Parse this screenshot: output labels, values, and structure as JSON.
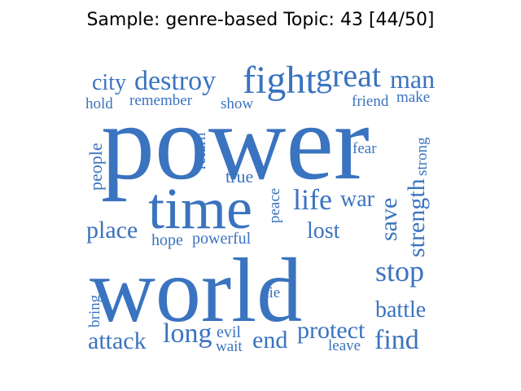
{
  "title": "Sample: genre-based Topic: 43 [44/50]",
  "cloud": {
    "color": "#3a73bf",
    "words": {
      "city": "city",
      "destroy": "destroy",
      "fight": "fight",
      "great": "great",
      "man": "man",
      "hold": "hold",
      "remember": "remember",
      "show": "show",
      "friend": "friend",
      "make": "make",
      "power": "power",
      "people": "people",
      "return": "return",
      "fear": "fear",
      "strong": "strong",
      "true": "true",
      "time": "time",
      "peace": "peace",
      "life": "life",
      "war": "war",
      "strength": "strength",
      "save": "save",
      "place": "place",
      "lost": "lost",
      "hope": "hope",
      "powerful": "powerful",
      "world": "world",
      "stop": "stop",
      "die": "die",
      "bring": "bring",
      "battle": "battle",
      "attack": "attack",
      "long": "long",
      "evil": "evil",
      "wait": "wait",
      "end": "end",
      "protect": "protect",
      "find": "find",
      "leave": "leave"
    }
  }
}
